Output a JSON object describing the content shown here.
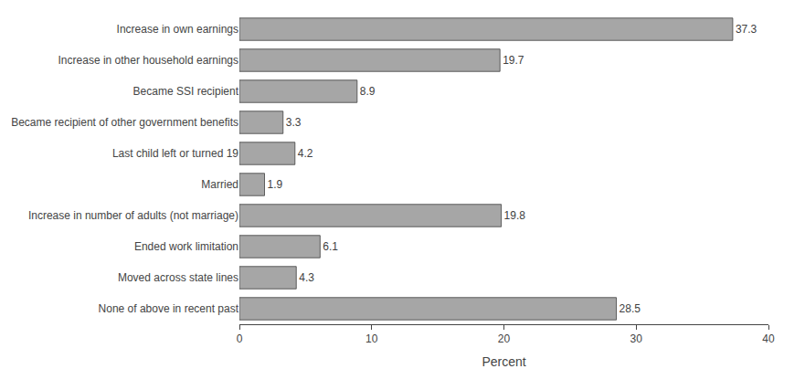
{
  "chart_data": {
    "type": "bar",
    "orientation": "horizontal",
    "categories": [
      "None of above in recent past",
      "Moved across state lines",
      "Ended work limitation",
      "Increase in number of adults (not marriage)",
      "Married",
      "Last child left or turned 19",
      "Became recipient of other government benefits",
      "Became SSI recipient",
      "Increase in other household earnings",
      "Increase in own earnings"
    ],
    "values": [
      28.5,
      4.3,
      6.1,
      19.8,
      1.9,
      4.2,
      3.3,
      8.9,
      19.7,
      37.3
    ],
    "color": "#a6a6a6",
    "xlabel": "Percent",
    "xlim": [
      0,
      40
    ],
    "xticks": [
      0,
      10,
      20,
      30,
      40
    ],
    "grid": false,
    "data_labels": true
  }
}
